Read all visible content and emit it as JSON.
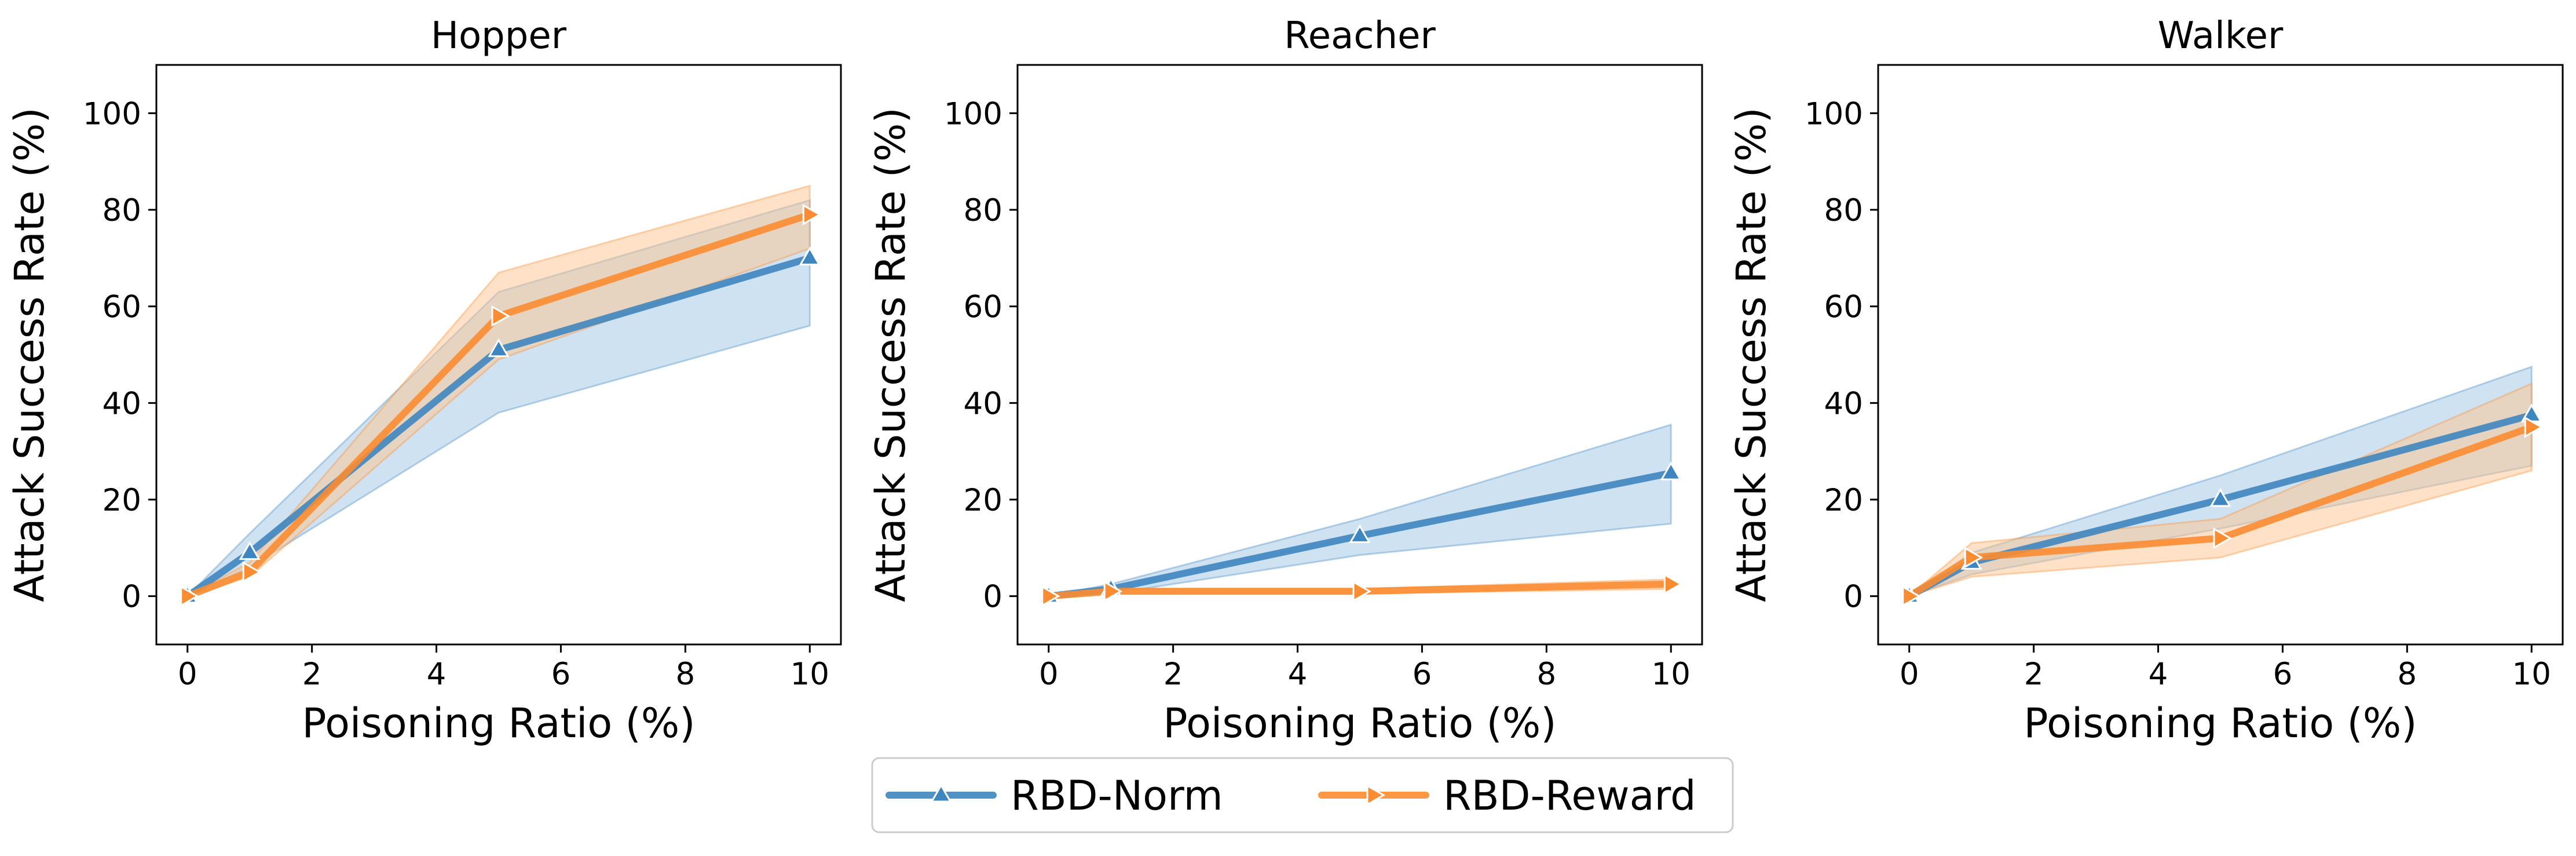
{
  "colors": {
    "norm": "#3e86bf",
    "norm_band": "#9fc6e3",
    "reward": "#fb8c31",
    "reward_band": "#fdc48f"
  },
  "legend": {
    "items": [
      {
        "label": "RBD-Norm",
        "series": "norm",
        "marker": "triangle-up"
      },
      {
        "label": "RBD-Reward",
        "series": "reward",
        "marker": "triangle-right"
      }
    ]
  },
  "chart_data": [
    {
      "type": "line",
      "title": "Hopper",
      "xlabel": "Poisoning Ratio (%)",
      "ylabel": "Attack Success Rate (%)",
      "xlim": [
        -0.5,
        10.5
      ],
      "ylim": [
        -10,
        110
      ],
      "xticks": [
        0,
        2,
        4,
        6,
        8,
        10
      ],
      "yticks": [
        0,
        20,
        40,
        60,
        80,
        100
      ],
      "x": [
        0,
        1,
        5,
        10
      ],
      "series": [
        {
          "name": "RBD-Norm",
          "key": "norm",
          "values": [
            0,
            9,
            51,
            70
          ],
          "lower": [
            0,
            6,
            38,
            56
          ],
          "upper": [
            0,
            13,
            63,
            82
          ]
        },
        {
          "name": "RBD-Reward",
          "key": "reward",
          "values": [
            0,
            5,
            58,
            79
          ],
          "lower": [
            0,
            4,
            49,
            72
          ],
          "upper": [
            0,
            7,
            67,
            85
          ]
        }
      ]
    },
    {
      "type": "line",
      "title": "Reacher",
      "xlabel": "Poisoning Ratio (%)",
      "ylabel": "Attack Success Rate (%)",
      "xlim": [
        -0.5,
        10.5
      ],
      "ylim": [
        -10,
        110
      ],
      "xticks": [
        0,
        2,
        4,
        6,
        8,
        10
      ],
      "yticks": [
        0,
        20,
        40,
        60,
        80,
        100
      ],
      "x": [
        0,
        1,
        5,
        10
      ],
      "series": [
        {
          "name": "RBD-Norm",
          "key": "norm",
          "values": [
            0,
            1.5,
            12.5,
            25.5
          ],
          "lower": [
            0,
            0.5,
            8.5,
            15
          ],
          "upper": [
            0,
            2.5,
            16,
            35.5
          ]
        },
        {
          "name": "RBD-Reward",
          "key": "reward",
          "values": [
            0,
            1,
            1,
            2.5
          ],
          "lower": [
            0,
            0.5,
            0.5,
            1.5
          ],
          "upper": [
            0,
            1.5,
            1.5,
            3.5
          ]
        }
      ]
    },
    {
      "type": "line",
      "title": "Walker",
      "xlabel": "Poisoning Ratio (%)",
      "ylabel": "Attack Success Rate (%)",
      "xlim": [
        -0.5,
        10.5
      ],
      "ylim": [
        -10,
        110
      ],
      "xticks": [
        0,
        2,
        4,
        6,
        8,
        10
      ],
      "yticks": [
        0,
        20,
        40,
        60,
        80,
        100
      ],
      "x": [
        0,
        1,
        5,
        10
      ],
      "series": [
        {
          "name": "RBD-Norm",
          "key": "norm",
          "values": [
            0,
            7,
            20,
            37.5
          ],
          "lower": [
            0,
            4.5,
            14,
            27
          ],
          "upper": [
            0,
            9,
            25,
            47.5
          ]
        },
        {
          "name": "RBD-Reward",
          "key": "reward",
          "values": [
            0,
            8,
            12,
            35
          ],
          "lower": [
            0,
            4,
            8,
            26
          ],
          "upper": [
            0,
            11,
            16,
            44
          ]
        }
      ]
    }
  ]
}
